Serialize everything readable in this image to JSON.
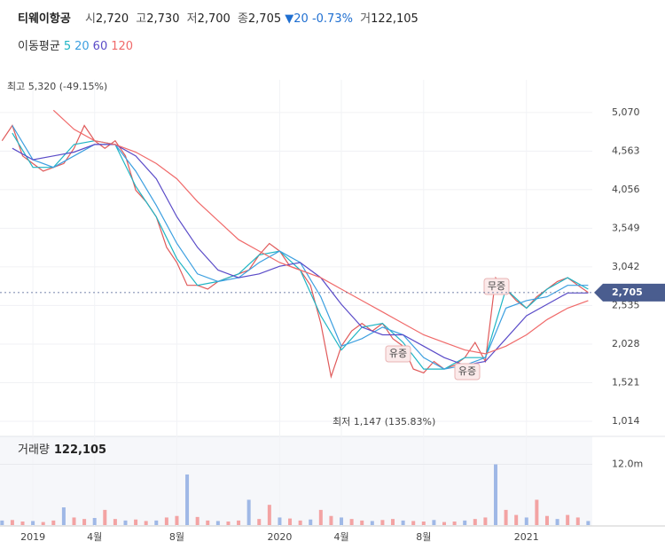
{
  "header": {
    "name": "티웨이항공",
    "open_label": "시",
    "open": "2,720",
    "high_label": "고",
    "high": "2,730",
    "low_label": "저",
    "low": "2,700",
    "close_label": "종",
    "close": "2,705",
    "arrow": "▼",
    "change": "20",
    "change_pct": "-0.73%",
    "volume_label": "거",
    "volume": "122,105"
  },
  "chart_data": [
    {
      "type": "line",
      "legend_title": "이동평균",
      "xlim": [
        -1.6,
        27.2
      ],
      "xticks": [
        {
          "value": 0,
          "label": "2019"
        },
        {
          "value": 3,
          "label": "4월"
        },
        {
          "value": 7,
          "label": "8월"
        },
        {
          "value": 12,
          "label": "2020"
        },
        {
          "value": 15,
          "label": "4월"
        },
        {
          "value": 19,
          "label": "8월"
        },
        {
          "value": 24,
          "label": "2021"
        }
      ],
      "ylim": [
        862,
        5500
      ],
      "yticks": [
        {
          "value": 5070,
          "label": "5,070"
        },
        {
          "value": 4563,
          "label": "4,563"
        },
        {
          "value": 4056,
          "label": "4,056"
        },
        {
          "value": 3549,
          "label": "3,549"
        },
        {
          "value": 3042,
          "label": "3,042"
        },
        {
          "value": 2535,
          "label": "2,535"
        },
        {
          "value": 2028,
          "label": "2,028"
        },
        {
          "value": 1521,
          "label": "1,521"
        },
        {
          "value": 1014,
          "label": "1,014"
        }
      ],
      "grid": true,
      "price": {
        "color": "#e05a5a",
        "x": [
          -1.5,
          -1,
          -0.5,
          0,
          0.5,
          1,
          1.5,
          2,
          2.5,
          3,
          3.5,
          4,
          4.5,
          5,
          5.5,
          6,
          6.5,
          7,
          7.5,
          8,
          8.5,
          9,
          9.5,
          10,
          10.5,
          11,
          11.5,
          12,
          12.5,
          13,
          13.5,
          14,
          14.5,
          15,
          15.5,
          16,
          16.5,
          17,
          17.5,
          18,
          18.5,
          19,
          19.5,
          20,
          20.5,
          21,
          21.5,
          22,
          22.5,
          23,
          23.5,
          24,
          24.5,
          25,
          25.5,
          26,
          26.5,
          27
        ],
        "values": [
          4700,
          4900,
          4500,
          4400,
          4300,
          4350,
          4400,
          4600,
          4900,
          4700,
          4600,
          4700,
          4500,
          4050,
          3900,
          3700,
          3300,
          3100,
          2800,
          2800,
          2750,
          2850,
          2900,
          2950,
          3000,
          3200,
          3350,
          3250,
          3050,
          3000,
          2800,
          2300,
          1600,
          2000,
          2200,
          2300,
          2200,
          2300,
          2100,
          2000,
          1700,
          1650,
          1800,
          1700,
          1750,
          1850,
          2050,
          1800,
          2900,
          2750,
          2600,
          2500,
          2650,
          2750,
          2850,
          2900,
          2800,
          2705
        ]
      },
      "series": [
        {
          "name": "5",
          "color": "#1fb5c4",
          "x": [
            -1,
            0,
            1,
            2,
            3,
            4,
            5,
            6,
            7,
            8,
            9,
            10,
            11,
            12,
            13,
            14,
            15,
            16,
            17,
            18,
            19,
            20,
            21,
            22,
            23,
            24,
            25,
            26,
            27
          ],
          "values": [
            4800,
            4350,
            4350,
            4650,
            4700,
            4650,
            4100,
            3700,
            3150,
            2800,
            2850,
            2950,
            3200,
            3250,
            3000,
            2400,
            1950,
            2250,
            2300,
            2050,
            1700,
            1700,
            1850,
            1850,
            2750,
            2500,
            2750,
            2900,
            2750
          ]
        },
        {
          "name": "20",
          "color": "#3c9fe0",
          "x": [
            -1,
            0,
            1,
            2,
            3,
            4,
            5,
            6,
            7,
            8,
            9,
            10,
            11,
            12,
            13,
            14,
            15,
            16,
            17,
            18,
            19,
            20,
            21,
            22,
            23,
            24,
            25,
            26,
            27
          ],
          "values": [
            4900,
            4450,
            4350,
            4500,
            4650,
            4650,
            4300,
            3850,
            3350,
            2950,
            2850,
            2900,
            3100,
            3250,
            3100,
            2650,
            2000,
            2100,
            2250,
            2150,
            1850,
            1700,
            1750,
            1850,
            2500,
            2600,
            2650,
            2800,
            2800
          ]
        },
        {
          "name": "60",
          "color": "#5a4bc8",
          "x": [
            -1,
            0,
            1,
            2,
            3,
            4,
            5,
            6,
            7,
            8,
            9,
            10,
            11,
            12,
            13,
            14,
            15,
            16,
            17,
            18,
            19,
            20,
            21,
            22,
            23,
            24,
            25,
            26,
            27
          ],
          "values": [
            4600,
            4450,
            4500,
            4550,
            4650,
            4650,
            4500,
            4200,
            3700,
            3300,
            3000,
            2900,
            2950,
            3050,
            3100,
            2900,
            2550,
            2250,
            2150,
            2150,
            2000,
            1850,
            1750,
            1800,
            2100,
            2400,
            2550,
            2700,
            2700
          ]
        },
        {
          "name": "120",
          "color": "#f06a6a",
          "x": [
            -1,
            0,
            1,
            2,
            3,
            4,
            5,
            6,
            7,
            8,
            9,
            10,
            11,
            12,
            13,
            14,
            15,
            16,
            17,
            18,
            19,
            20,
            21,
            22,
            23,
            24,
            25,
            26,
            27
          ],
          "values": [
            null,
            null,
            5100,
            4850,
            4700,
            4650,
            4550,
            4400,
            4200,
            3900,
            3650,
            3400,
            3250,
            3100,
            3000,
            2900,
            2750,
            2600,
            2450,
            2300,
            2150,
            2050,
            1950,
            1900,
            2000,
            2150,
            2350,
            2500,
            2600
          ]
        }
      ],
      "annotations": [
        "최고 5,320 (-49.15%)",
        "최저 1,147 (135.83%)",
        "무증",
        "유증",
        "유증"
      ]
    },
    {
      "type": "bar",
      "title": "거래량",
      "title_value": "122,105",
      "color": "#f3a3a3",
      "xlim": [
        -1.6,
        27.2
      ],
      "ylim": [
        0,
        17000000
      ],
      "yticks": [
        {
          "value": 12000000,
          "label": "12.0m"
        }
      ],
      "x": [
        -1.5,
        -1,
        -0.5,
        0,
        0.5,
        1,
        1.5,
        2,
        2.5,
        3,
        3.5,
        4,
        4.5,
        5,
        5.5,
        6,
        6.5,
        7,
        7.5,
        8,
        8.5,
        9,
        9.5,
        10,
        10.5,
        11,
        11.5,
        12,
        12.5,
        13,
        13.5,
        14,
        14.5,
        15,
        15.5,
        16,
        16.5,
        17,
        17.5,
        18,
        18.5,
        19,
        19.5,
        20,
        20.5,
        21,
        21.5,
        22,
        22.5,
        23,
        23.5,
        24,
        24.5,
        25,
        25.5,
        26,
        26.5,
        27
      ],
      "values": [
        900000,
        1000000,
        700000,
        800000,
        600000,
        900000,
        3500000,
        1500000,
        1200000,
        1400000,
        3000000,
        1200000,
        900000,
        1100000,
        800000,
        900000,
        1500000,
        1800000,
        10000000,
        1600000,
        900000,
        800000,
        700000,
        900000,
        5000000,
        1200000,
        4000000,
        1500000,
        1300000,
        900000,
        1100000,
        3000000,
        1800000,
        1500000,
        1200000,
        900000,
        800000,
        1000000,
        1200000,
        900000,
        800000,
        700000,
        1000000,
        600000,
        700000,
        900000,
        1200000,
        1500000,
        12000000,
        3000000,
        2000000,
        1500000,
        5000000,
        1800000,
        1200000,
        2000000,
        1500000,
        800000
      ]
    }
  ]
}
